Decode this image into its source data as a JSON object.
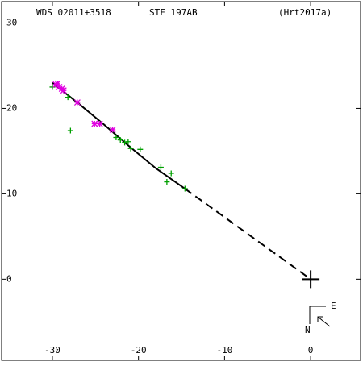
{
  "chart_data": {
    "type": "scatter",
    "headers": [
      "WDS 02011+3518",
      "STF 197AB",
      "(Hrt2017a)"
    ],
    "xlim": [
      -35.9,
      5.8
    ],
    "ylim": [
      -9.5,
      32.5
    ],
    "xticks": [
      -30,
      -20,
      -10,
      0
    ],
    "yticks": [
      30,
      20,
      10,
      0
    ],
    "series": [
      {
        "color": "#00a000",
        "marker": "plus",
        "x": [
          -30.0,
          -27.9,
          -28.2,
          -22.6,
          -22.1,
          -21.2,
          -20.9,
          -19.8,
          -17.4,
          -16.7,
          -16.2,
          -14.6,
          -21.6
        ],
        "y": [
          22.5,
          17.4,
          21.3,
          16.6,
          16.3,
          16.1,
          15.3,
          15.2,
          13.1,
          11.4,
          12.4,
          10.6,
          16.0
        ]
      },
      {
        "color": "#e000e0",
        "marker": "star",
        "x": [
          -29.6,
          -29.2,
          -28.7,
          -27.1,
          -25.1,
          -24.5,
          -23.0,
          -29.4,
          -28.9
        ],
        "y": [
          22.8,
          22.5,
          22.1,
          20.7,
          18.2,
          18.2,
          17.5,
          22.9,
          22.3
        ]
      }
    ],
    "orbit": {
      "color": "#000000",
      "x": [
        -30.0,
        -27.0,
        -24.0,
        -21.0,
        -18.0,
        -14.6
      ],
      "y": [
        23.0,
        20.6,
        18.1,
        15.5,
        13.0,
        10.6
      ]
    },
    "node_line": {
      "color": "#000000",
      "x": [
        -14.6,
        0
      ],
      "y": [
        10.6,
        0
      ]
    },
    "primary": {
      "x": 0,
      "y": 0
    },
    "compass": {
      "east": "E",
      "north": "N"
    }
  }
}
